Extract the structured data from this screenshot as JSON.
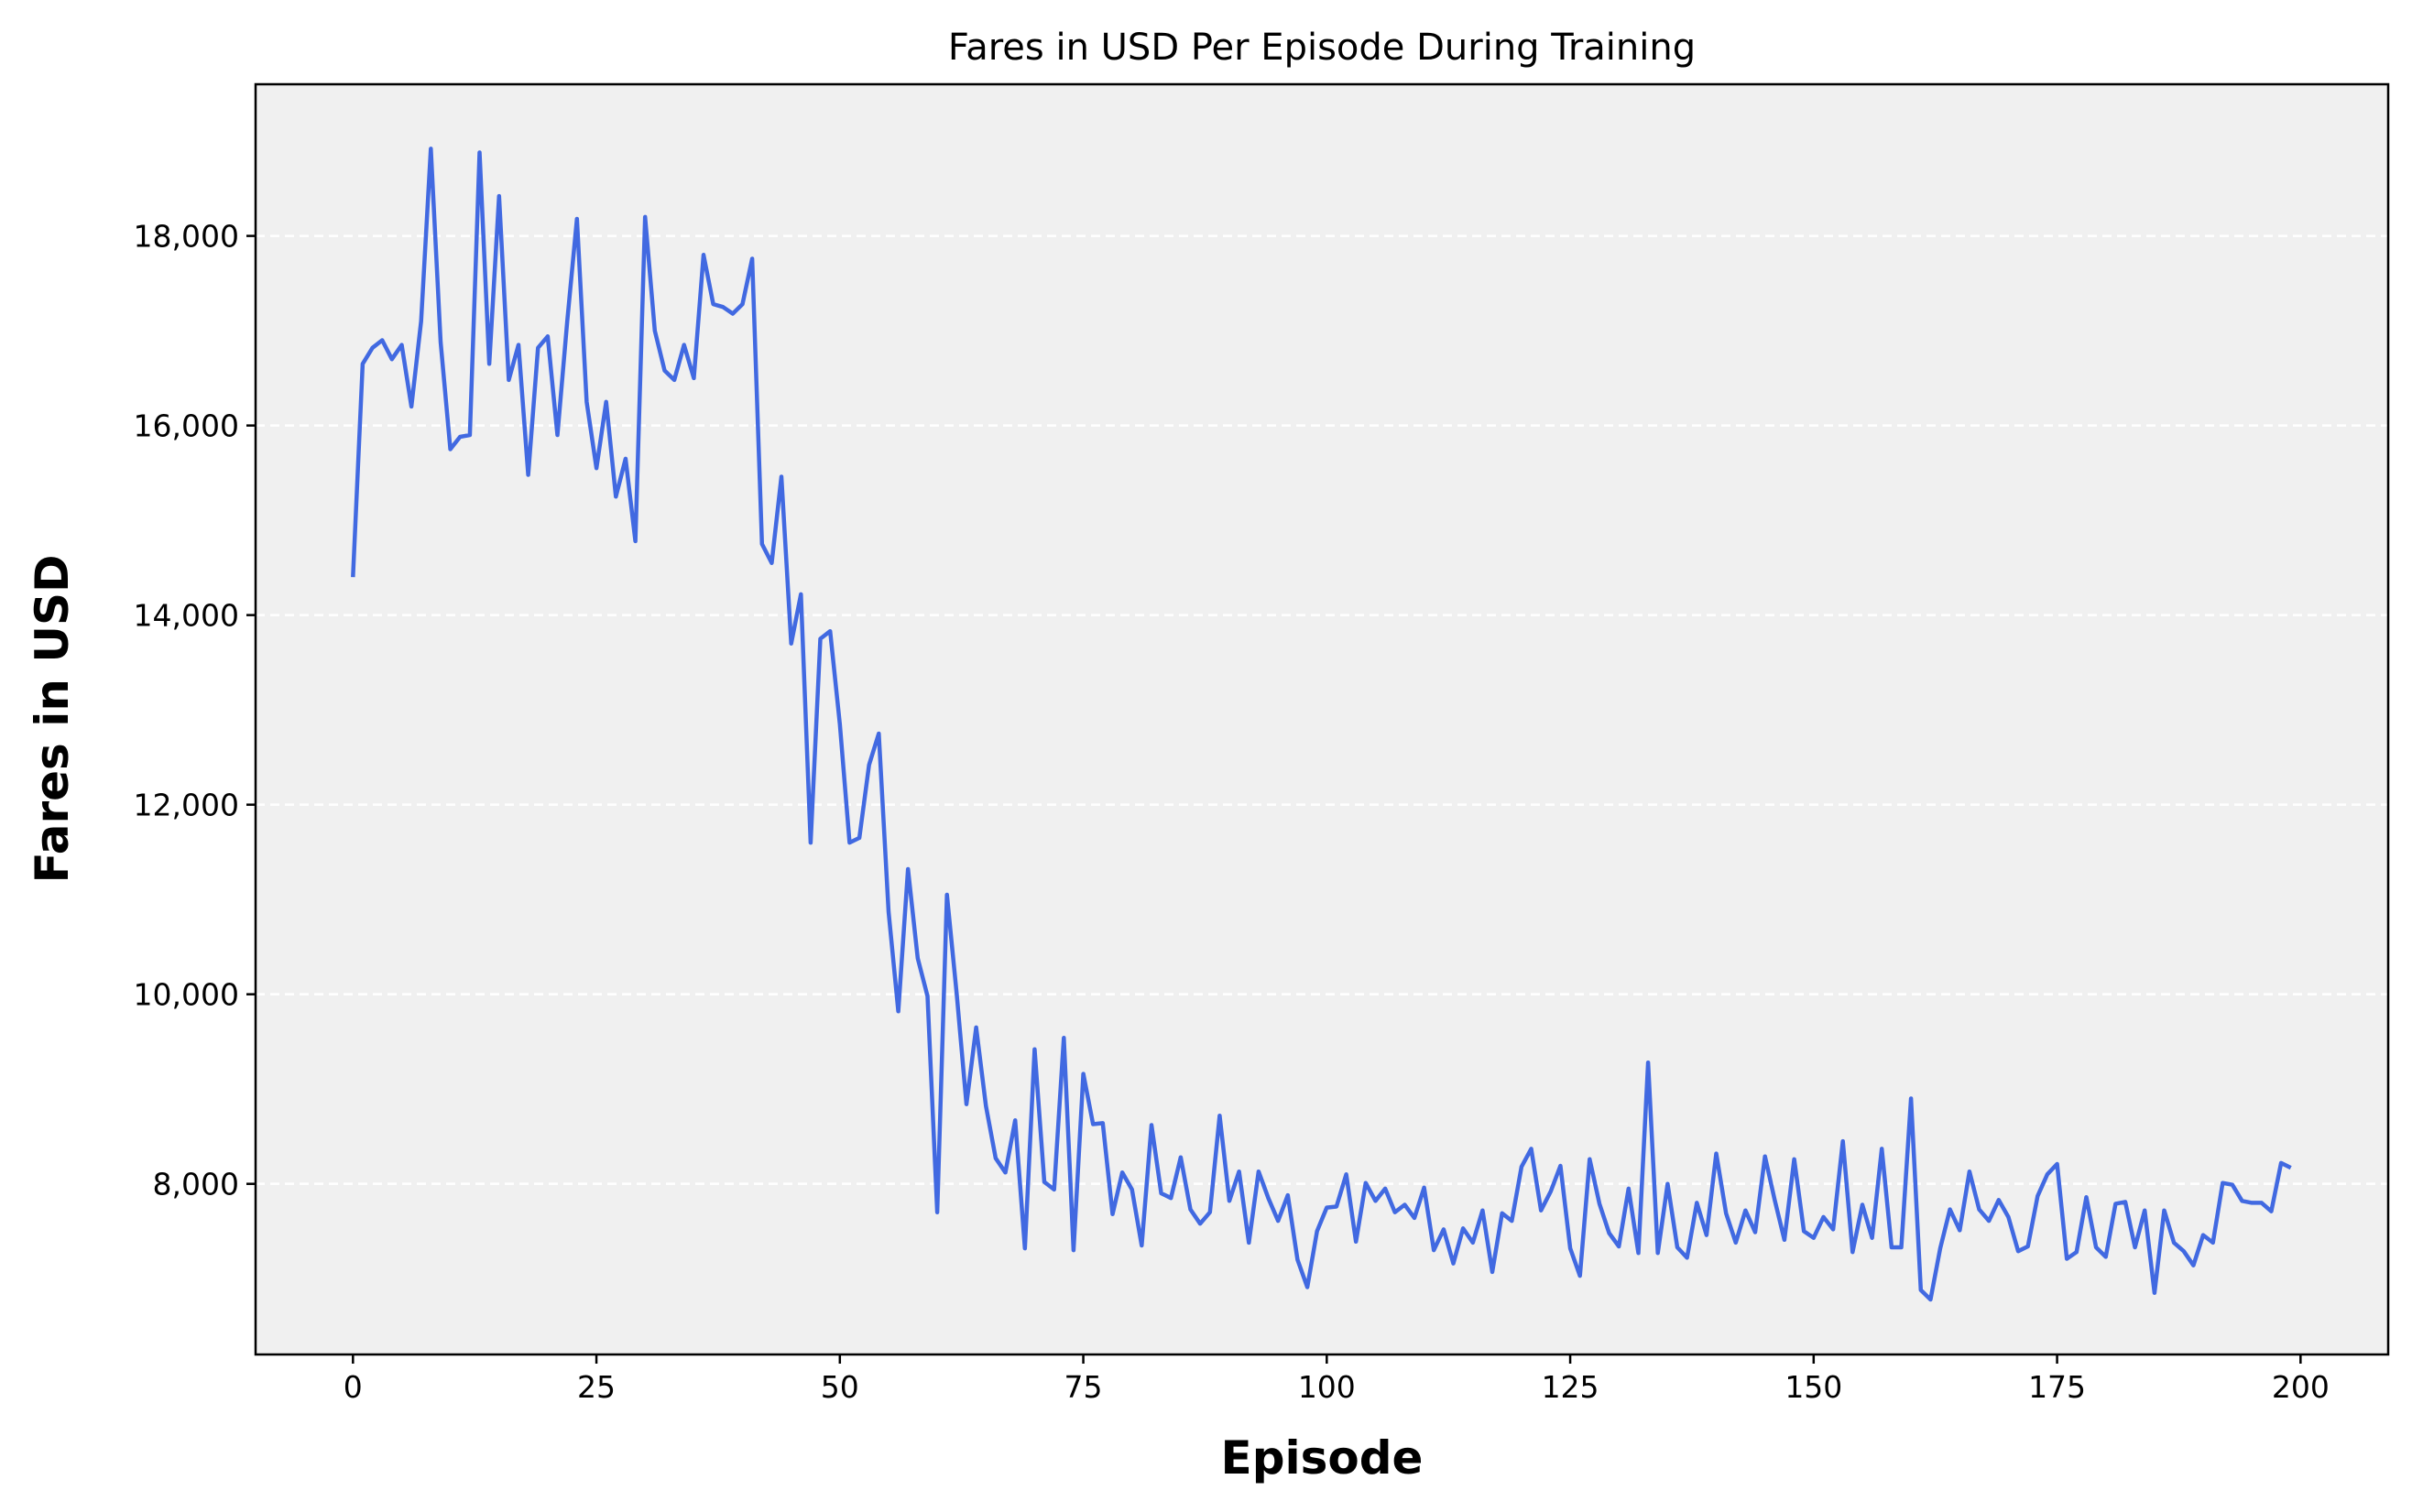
{
  "chart_data": {
    "type": "line",
    "title": "Fares in USD Per Episode During Training",
    "xlabel": "Episode",
    "ylabel": "Fares in USD",
    "xlim": [
      -10,
      209
    ],
    "ylim": [
      6200,
      19600
    ],
    "x_ticks": [
      0,
      25,
      50,
      75,
      100,
      125,
      150,
      175,
      200
    ],
    "x_tick_labels": [
      "0",
      "25",
      "50",
      "75",
      "100",
      "125",
      "150",
      "175",
      "200"
    ],
    "y_ticks": [
      8000,
      10000,
      12000,
      14000,
      16000,
      18000
    ],
    "y_tick_labels": [
      "8,000",
      "10,000",
      "12,000",
      "14,000",
      "16,000",
      "18,000"
    ],
    "grid": "y-dashed",
    "colors": {
      "line": "#4169E1",
      "plot_bg": "#F0F0F0",
      "grid": "#FFFFFF"
    },
    "series": [
      {
        "x": [
          0,
          1,
          2,
          3,
          4,
          5,
          6,
          7,
          8,
          9,
          10,
          11,
          12,
          13,
          14,
          15,
          16,
          17,
          18,
          19,
          20,
          21,
          22,
          23,
          24,
          25,
          26,
          27,
          28,
          29,
          30,
          31,
          32,
          33,
          34,
          35,
          36,
          37,
          38,
          39,
          40,
          41,
          42,
          43,
          44,
          45,
          46,
          47,
          48,
          49,
          50,
          51,
          52,
          53,
          54,
          55,
          56,
          57,
          58,
          59,
          60,
          61,
          62,
          63,
          64,
          65,
          66,
          67,
          68,
          69,
          70,
          71,
          72,
          73,
          74,
          75,
          76,
          77,
          78,
          79,
          80,
          81,
          82,
          83,
          84,
          85,
          86,
          87,
          88,
          89,
          90,
          91,
          92,
          93,
          94,
          95,
          96,
          97,
          98,
          99,
          100,
          101,
          102,
          103,
          104,
          105,
          106,
          107,
          108,
          109,
          110,
          111,
          112,
          113,
          114,
          115,
          116,
          117,
          118,
          119,
          120,
          121,
          122,
          123,
          124,
          125,
          126,
          127,
          128,
          129,
          130,
          131,
          132,
          133,
          134,
          135,
          136,
          137,
          138,
          139,
          140,
          141,
          142,
          143,
          144,
          145,
          146,
          147,
          148,
          149,
          150,
          151,
          152,
          153,
          154,
          155,
          156,
          157,
          158,
          159,
          160,
          161,
          162,
          163,
          164,
          165,
          166,
          167,
          168,
          169,
          170,
          171,
          172,
          173,
          174,
          175,
          176,
          177,
          178,
          179,
          180,
          181,
          182,
          183,
          184,
          185,
          186,
          187,
          188,
          189,
          190,
          191,
          192,
          193,
          194,
          195,
          196,
          197,
          198,
          199
        ],
        "values": [
          14400,
          16650,
          16820,
          16900,
          16700,
          16850,
          16200,
          17100,
          18920,
          16880,
          15750,
          15880,
          15900,
          18880,
          16650,
          18420,
          16480,
          16850,
          15480,
          16820,
          16940,
          15900,
          17100,
          18180,
          16250,
          15550,
          16250,
          15250,
          15650,
          14780,
          18200,
          17000,
          16580,
          16480,
          16850,
          16500,
          17800,
          17280,
          17250,
          17180,
          17280,
          17760,
          14750,
          14550,
          15460,
          13700,
          14220,
          11600,
          13750,
          13830,
          12850,
          11600,
          11650,
          12420,
          12750,
          10870,
          9820,
          11320,
          10380,
          9980,
          7700,
          11050,
          10000,
          8840,
          9650,
          8820,
          8270,
          8120,
          8670,
          7320,
          9420,
          8020,
          7940,
          9540,
          7300,
          9160,
          8630,
          8640,
          7680,
          8120,
          7940,
          7350,
          8620,
          7900,
          7850,
          8280,
          7730,
          7580,
          7700,
          8720,
          7820,
          8130,
          7380,
          8130,
          7850,
          7610,
          7880,
          7200,
          6910,
          7500,
          7750,
          7760,
          8100,
          7390,
          8010,
          7820,
          7950,
          7700,
          7780,
          7640,
          7960,
          7300,
          7520,
          7160,
          7530,
          7380,
          7720,
          7070,
          7690,
          7610,
          8180,
          8370,
          7720,
          7920,
          8190,
          7320,
          7030,
          8260,
          7790,
          7480,
          7340,
          7950,
          7270,
          9280,
          7270,
          8000,
          7330,
          7220,
          7800,
          7460,
          8320,
          7690,
          7380,
          7720,
          7490,
          8290,
          7830,
          7410,
          8260,
          7500,
          7430,
          7650,
          7520,
          8450,
          7280,
          7780,
          7430,
          8370,
          7330,
          7330,
          8900,
          6880,
          6780,
          7320,
          7730,
          7510,
          8130,
          7730,
          7610,
          7830,
          7650,
          7290,
          7340,
          7870,
          8100,
          8210,
          7210,
          7280,
          7860,
          7330,
          7230,
          7790,
          7810,
          7330,
          7720,
          6850,
          7720,
          7380,
          7290,
          7140,
          7460,
          7380,
          8010,
          7990,
          7820,
          7800,
          7800,
          7710,
          8220,
          8170
        ]
      }
    ]
  }
}
